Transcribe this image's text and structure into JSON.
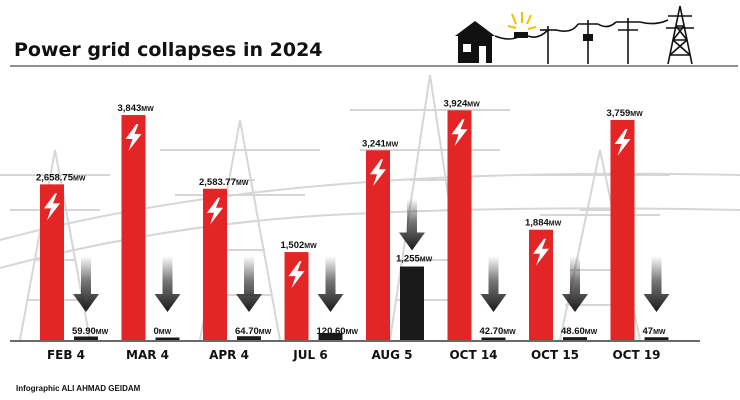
{
  "chart_data": {
    "type": "bar",
    "title": "Power grid collapses in 2024",
    "unit": "MW",
    "categories": [
      "FEB 4",
      "MAR 4",
      "APR 4",
      "JUL 6",
      "AUG 5",
      "OCT 14",
      "OCT 15",
      "OCT 19"
    ],
    "series": [
      {
        "values": [
          2658.75,
          3843,
          2583.77,
          1502,
          3241,
          3924,
          1884,
          3759
        ],
        "labels": [
          "2,658.75",
          "3,843",
          "2,583.77",
          "1,502",
          "3,241",
          "3,924",
          "1,884",
          "3,759"
        ]
      },
      {
        "values": [
          59.9,
          0,
          64.7,
          120.6,
          1255,
          42.7,
          48.6,
          47
        ],
        "labels": [
          "59.90",
          "0",
          "64.70",
          "120.60",
          "1,255",
          "42.70",
          "48.60",
          "47"
        ]
      }
    ],
    "colors": {
      "before": "#e32526",
      "after": "#1a1a1a"
    },
    "ylim": [
      0,
      4100
    ],
    "grid": false,
    "legend": "none"
  },
  "credit": "Infographic ALI AHMAD GEIDAM",
  "icons": [
    "house-icon",
    "power-lines-icon",
    "transmission-tower-icon",
    "lightning-bolt-icon",
    "down-arrow-icon"
  ]
}
